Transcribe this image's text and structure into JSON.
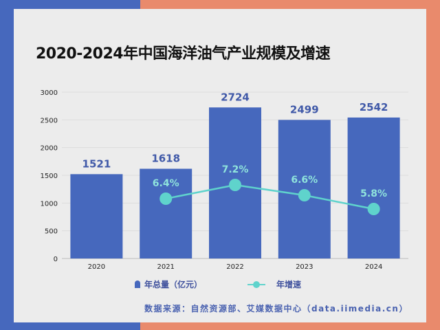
{
  "colors": {
    "bar": "#4668bd",
    "line": "#5fd3cc",
    "bg_left": "#4668bd",
    "bg_right": "#e98a6c",
    "card": "#ececec"
  },
  "chart_data": {
    "type": "bar+line",
    "title": "2020-2024年中国海洋油气产业规模及增速",
    "categories": [
      "2020",
      "2021",
      "2022",
      "2023",
      "2024"
    ],
    "ylim": [
      0,
      3000
    ],
    "yticks": [
      0,
      500,
      1000,
      1500,
      2000,
      2500,
      3000
    ],
    "grid": true,
    "legend_position": "bottom",
    "series": [
      {
        "name": "年总量（亿元）",
        "type": "bar",
        "values": [
          1521,
          1618,
          2724,
          2499,
          2542
        ],
        "labels": [
          "1521",
          "1618",
          "2724",
          "2499",
          "2542"
        ]
      },
      {
        "name": "年增速",
        "type": "line",
        "unit": "%",
        "values": [
          null,
          6.4,
          7.2,
          6.6,
          5.8
        ],
        "labels": [
          "",
          "6.4%",
          "7.2%",
          "6.6%",
          "5.8%"
        ]
      }
    ]
  },
  "source": "数据来源：自然资源部、艾媒数据中心（data.iimedia.cn）"
}
